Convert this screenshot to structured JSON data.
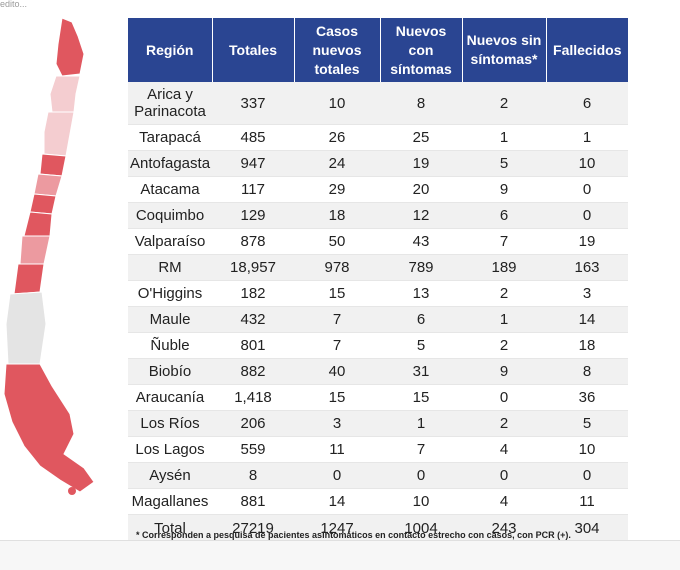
{
  "top_text": "edito...",
  "table": {
    "headers": [
      "Región",
      "Totales",
      "Casos nuevos totales",
      "Nuevos con síntomas",
      "Nuevos sin síntomas*",
      "Fallecidos"
    ],
    "rows": [
      [
        "Arica y Parinacota",
        "337",
        "10",
        "8",
        "2",
        "6"
      ],
      [
        "Tarapacá",
        "485",
        "26",
        "25",
        "1",
        "1"
      ],
      [
        "Antofagasta",
        "947",
        "24",
        "19",
        "5",
        "10"
      ],
      [
        "Atacama",
        "117",
        "29",
        "20",
        "9",
        "0"
      ],
      [
        "Coquimbo",
        "129",
        "18",
        "12",
        "6",
        "0"
      ],
      [
        "Valparaíso",
        "878",
        "50",
        "43",
        "7",
        "19"
      ],
      [
        "RM",
        "18,957",
        "978",
        "789",
        "189",
        "163"
      ],
      [
        "O'Higgins",
        "182",
        "15",
        "13",
        "2",
        "3"
      ],
      [
        "Maule",
        "432",
        "7",
        "6",
        "1",
        "14"
      ],
      [
        "Ñuble",
        "801",
        "7",
        "5",
        "2",
        "18"
      ],
      [
        "Biobío",
        "882",
        "40",
        "31",
        "9",
        "8"
      ],
      [
        "Araucanía",
        "1,418",
        "15",
        "15",
        "0",
        "36"
      ],
      [
        "Los Ríos",
        "206",
        "3",
        "1",
        "2",
        "5"
      ],
      [
        "Los Lagos",
        "559",
        "11",
        "7",
        "4",
        "10"
      ],
      [
        "Aysén",
        "8",
        "0",
        "0",
        "0",
        "0"
      ],
      [
        "Magallanes",
        "881",
        "14",
        "10",
        "4",
        "11"
      ]
    ],
    "total": [
      "Total",
      "27219",
      "1247",
      "1004",
      "243",
      "304"
    ]
  },
  "footnote": "* Corresponden a pesquisa de pacientes asintomáticos en contacto estrecho con casos, con PCR (+).",
  "colors": {
    "header_bg": "#2a4592",
    "map_high": "#e0575f",
    "map_mid": "#ec9aa0",
    "map_low": "#f4cdd0",
    "map_none": "#e4e4e4"
  }
}
